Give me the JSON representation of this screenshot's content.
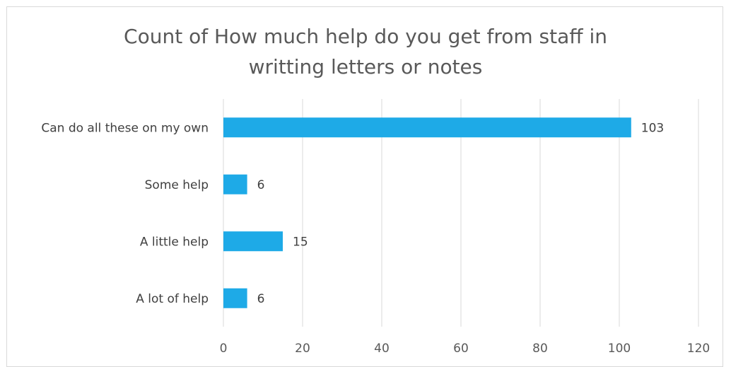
{
  "chart_data": {
    "type": "bar",
    "orientation": "horizontal",
    "title": "Count of How much help do you get from staff in\nwritting letters or notes",
    "categories": [
      "Can do all these on my own",
      "Some help",
      "A little help",
      "A lot of help"
    ],
    "values": [
      103,
      6,
      15,
      6
    ],
    "xlim": [
      0,
      120
    ],
    "xticks": [
      0,
      20,
      40,
      60,
      80,
      100,
      120
    ],
    "grid": "vertical",
    "data_labels": true,
    "bar_color": "#1eaae7",
    "gridline_color": "#d9d9d9"
  }
}
